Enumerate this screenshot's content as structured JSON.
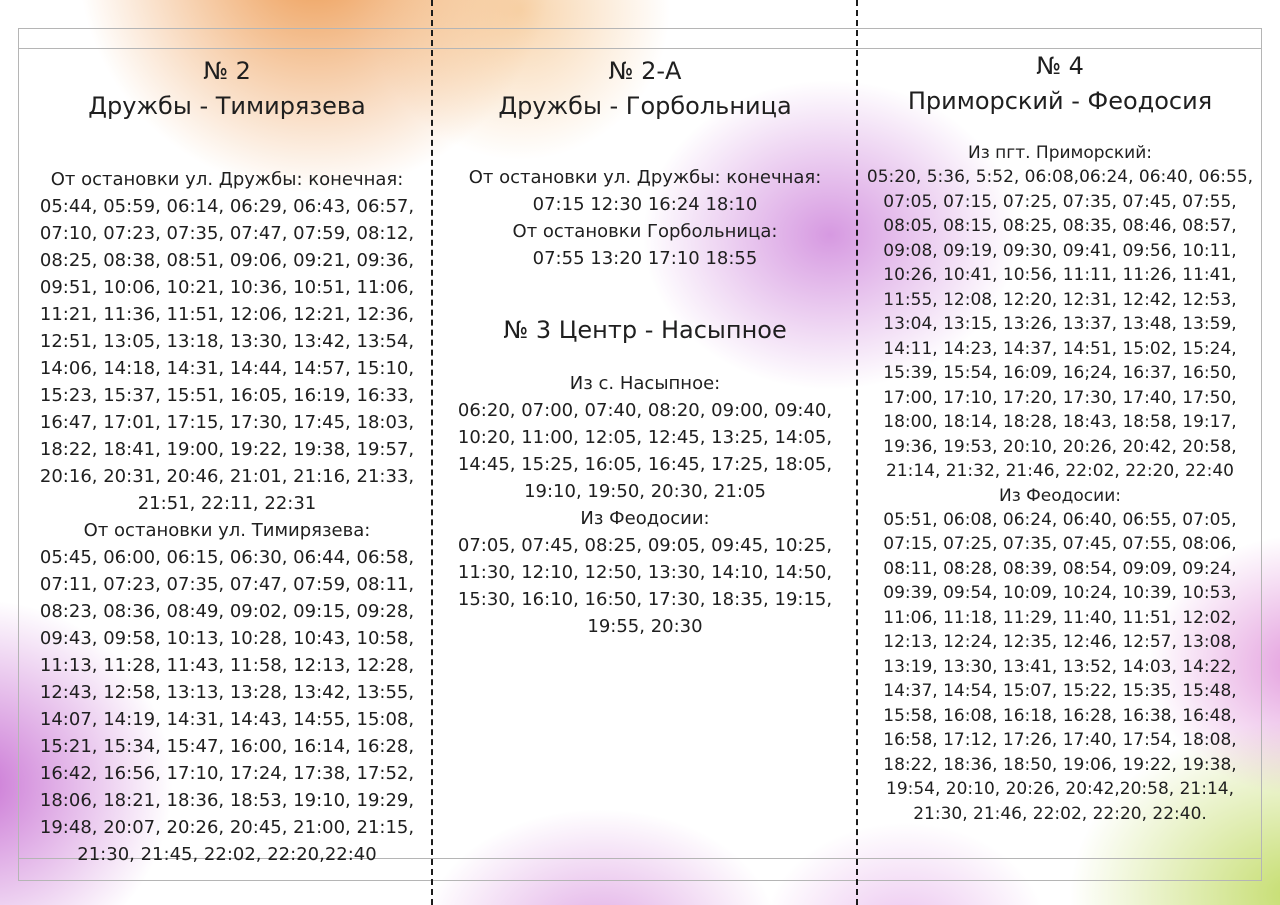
{
  "document": {
    "type": "bus-timetable-leaflet",
    "colors": {
      "background": "#ffffff",
      "blob_orange": "#ec9446",
      "blob_purple": "#bb55cd",
      "blob_magenta": "#cd50c3",
      "blob_green": "#bbd755",
      "fold_line": "#1c1c1c",
      "frame_line": "#b5b5b5",
      "text": "#1f1f1f"
    }
  },
  "columns": [
    {
      "title": "№ 2",
      "subtitle": "Дружбы - Тимирязева",
      "sections": [
        {
          "heading": "От остановки ул. Дружбы: конечная:",
          "times": "05:44, 05:59, 06:14, 06:29, 06:43, 06:57, 07:10, 07:23, 07:35, 07:47, 07:59, 08:12, 08:25, 08:38, 08:51, 09:06, 09:21, 09:36, 09:51, 10:06, 10:21, 10:36, 10:51, 11:06, 11:21, 11:36, 11:51, 12:06, 12:21, 12:36, 12:51, 13:05, 13:18, 13:30, 13:42, 13:54, 14:06, 14:18, 14:31, 14:44, 14:57, 15:10, 15:23, 15:37, 15:51, 16:05, 16:19, 16:33, 16:47, 17:01, 17:15, 17:30, 17:45, 18:03, 18:22, 18:41, 19:00, 19:22, 19:38, 19:57, 20:16, 20:31, 20:46, 21:01, 21:16, 21:33, 21:51, 22:11, 22:31"
        },
        {
          "heading": "От остановки ул. Тимирязева:",
          "times": "05:45, 06:00, 06:15, 06:30, 06:44, 06:58, 07:11, 07:23, 07:35, 07:47, 07:59, 08:11, 08:23, 08:36, 08:49, 09:02, 09:15, 09:28, 09:43, 09:58, 10:13, 10:28, 10:43, 10:58, 11:13, 11:28, 11:43, 11:58, 12:13, 12:28, 12:43, 12:58, 13:13, 13:28, 13:42, 13:55, 14:07, 14:19, 14:31, 14:43, 14:55, 15:08, 15:21, 15:34, 15:47, 16:00, 16:14, 16:28, 16:42, 16:56, 17:10, 17:24, 17:38, 17:52, 18:06, 18:21, 18:36, 18:53, 19:10, 19:29, 19:48, 20:07, 20:26, 20:45, 21:00, 21:15, 21:30, 21:45, 22:02, 22:20,22:40"
        }
      ]
    },
    {
      "title": "№ 2-А",
      "subtitle": "Дружбы - Горбольница",
      "sections": [
        {
          "heading": "От остановки ул. Дружбы: конечная:",
          "times": "07:15 12:30 16:24 18:10"
        },
        {
          "heading": "От остановки Горбольница:",
          "times": "07:55 13:20 17:10 18:55"
        }
      ],
      "route2": {
        "title": "№ 3 Центр - Насыпное",
        "sections": [
          {
            "heading": "Из с. Насыпное:",
            "times": "06:20, 07:00, 07:40, 08:20, 09:00, 09:40, 10:20, 11:00, 12:05, 12:45, 13:25, 14:05, 14:45, 15:25, 16:05, 16:45, 17:25, 18:05, 19:10, 19:50, 20:30, 21:05"
          },
          {
            "heading": "Из Феодосии:",
            "times": "07:05, 07:45, 08:25, 09:05, 09:45, 10:25, 11:30, 12:10, 12:50, 13:30, 14:10, 14:50, 15:30, 16:10, 16:50, 17:30, 18:35, 19:15, 19:55, 20:30"
          }
        ]
      }
    },
    {
      "title": "№ 4",
      "subtitle": "Приморский - Феодосия",
      "sections": [
        {
          "heading": "Из пгт. Приморский:",
          "times": "05:20, 5:36, 5:52, 06:08,06:24, 06:40, 06:55, 07:05, 07:15, 07:25, 07:35, 07:45, 07:55, 08:05, 08:15, 08:25, 08:35, 08:46, 08:57, 09:08, 09:19, 09:30, 09:41, 09:56, 10:11, 10:26, 10:41, 10:56, 11:11, 11:26, 11:41, 11:55, 12:08, 12:20, 12:31, 12:42, 12:53, 13:04, 13:15, 13:26, 13:37, 13:48, 13:59, 14:11, 14:23, 14:37, 14:51, 15:02, 15:24, 15:39, 15:54, 16:09, 16;24, 16:37, 16:50, 17:00, 17:10, 17:20, 17:30, 17:40, 17:50, 18:00, 18:14, 18:28, 18:43, 18:58, 19:17, 19:36, 19:53, 20:10, 20:26, 20:42, 20:58, 21:14, 21:32, 21:46, 22:02, 22:20, 22:40"
        },
        {
          "heading": "Из Феодосии:",
          "times": "05:51, 06:08, 06:24, 06:40, 06:55, 07:05, 07:15, 07:25, 07:35, 07:45, 07:55, 08:06, 08:11, 08:28, 08:39, 08:54, 09:09, 09:24, 09:39, 09:54, 10:09, 10:24, 10:39, 10:53, 11:06, 11:18, 11:29, 11:40, 11:51, 12:02, 12:13, 12:24, 12:35, 12:46, 12:57, 13:08, 13:19, 13:30, 13:41, 13:52, 14:03, 14:22, 14:37, 14:54, 15:07, 15:22, 15:35, 15:48, 15:58, 16:08, 16:18, 16:28, 16:38, 16:48, 16:58, 17:12, 17:26, 17:40, 17:54, 18:08, 18:22, 18:36, 18:50, 19:06, 19:22, 19:38, 19:54, 20:10, 20:26, 20:42,20:58, 21:14, 21:30, 21:46, 22:02, 22:20, 22:40."
        }
      ]
    }
  ]
}
